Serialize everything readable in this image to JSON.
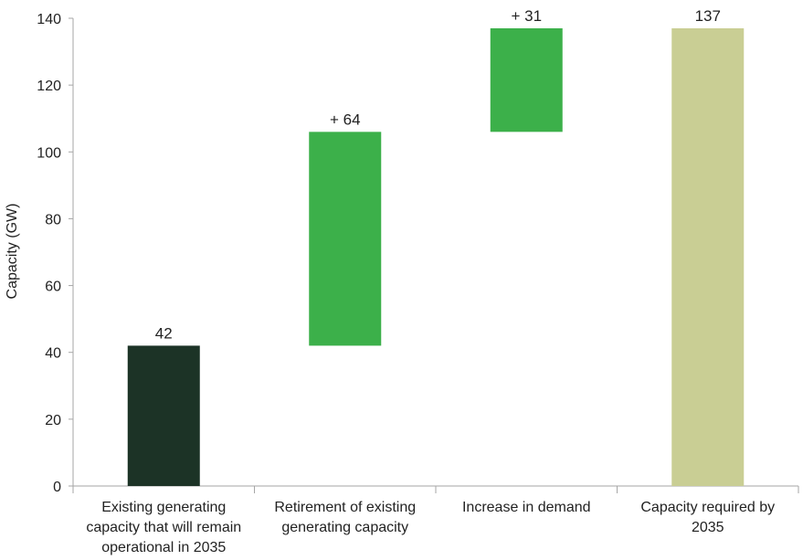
{
  "chart_data": {
    "type": "bar",
    "subtype": "waterfall",
    "ylabel": "Capacity (GW)",
    "xlabel": "",
    "ylim": [
      0,
      140
    ],
    "yticks": [
      "0",
      "20",
      "40",
      "60",
      "80",
      "100",
      "120",
      "140"
    ],
    "grid": false,
    "legend": "none",
    "categories": [
      "Existing generating capacity that will remain operational in 2035",
      "Retirement of existing generating capacity",
      "Increase in demand",
      "Capacity required by 2035"
    ],
    "category_lines": [
      [
        "Existing generating",
        "capacity that will remain",
        "operational in 2035"
      ],
      [
        "Retirement of existing",
        "generating capacity"
      ],
      [
        "Increase in demand"
      ],
      [
        "Capacity required by",
        "2035"
      ]
    ],
    "bars": [
      {
        "base": 0,
        "value": 42,
        "label": "42",
        "color": "#1c3326"
      },
      {
        "base": 42,
        "value": 64,
        "label": "+ 64",
        "color": "#3cb04a"
      },
      {
        "base": 106,
        "value": 31,
        "label": "+ 31",
        "color": "#3cb04a"
      },
      {
        "base": 0,
        "value": 137,
        "label": "137",
        "color": "#c9ce94"
      }
    ]
  }
}
